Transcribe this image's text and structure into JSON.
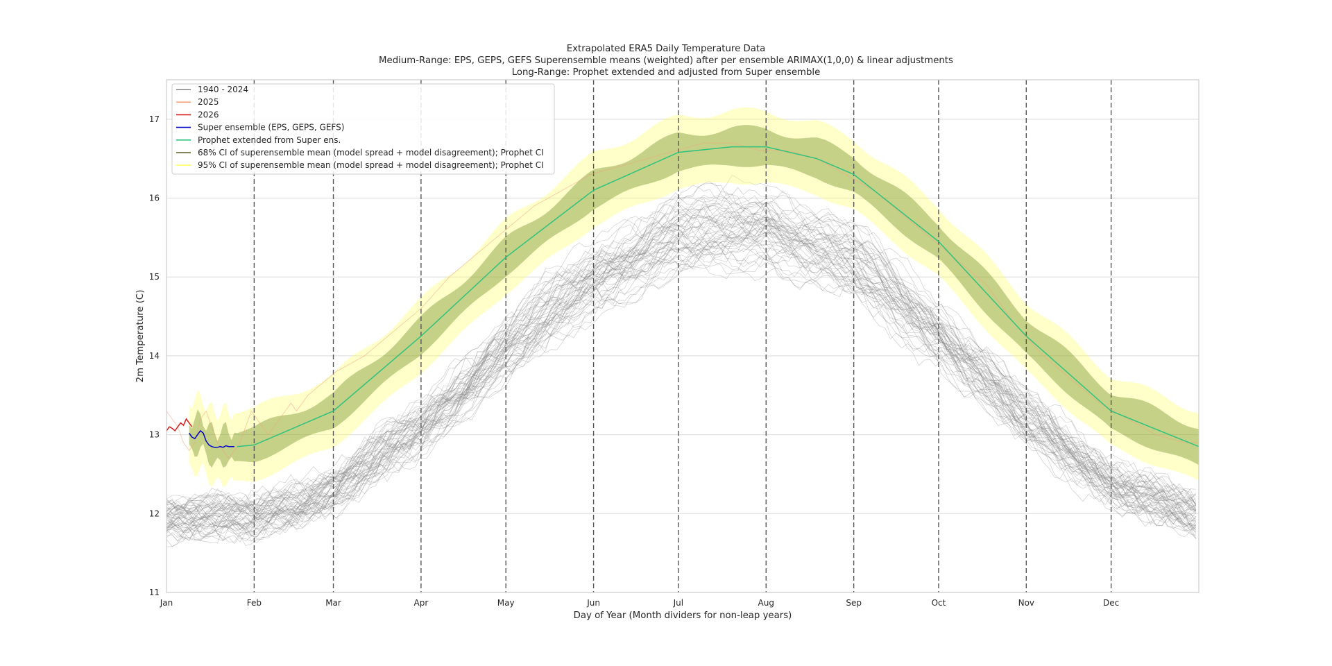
{
  "chart_data": {
    "type": "line",
    "title": [
      "Extrapolated ERA5 Daily Temperature Data",
      "Medium-Range: EPS, GEPS, GEFS Superensemble means (weighted) after per ensemble ARIMAX(1,0,0) & linear adjustments",
      "Long-Range: Prophet extended and adjusted from Super ensemble"
    ],
    "xlabel": "Day of Year (Month dividers for non-leap years)",
    "ylabel": "2m Temperature (C)",
    "xlim": [
      0,
      365
    ],
    "ylim": [
      11,
      17.5
    ],
    "yticks": [
      11,
      12,
      13,
      14,
      15,
      16,
      17
    ],
    "month_ticks": [
      {
        "day": 0,
        "label": "Jan"
      },
      {
        "day": 31,
        "label": "Feb"
      },
      {
        "day": 59,
        "label": "Mar"
      },
      {
        "day": 90,
        "label": "Apr"
      },
      {
        "day": 120,
        "label": "May"
      },
      {
        "day": 151,
        "label": "Jun"
      },
      {
        "day": 181,
        "label": "Jul"
      },
      {
        "day": 212,
        "label": "Aug"
      },
      {
        "day": 243,
        "label": "Sep"
      },
      {
        "day": 273,
        "label": "Oct"
      },
      {
        "day": 304,
        "label": "Nov"
      },
      {
        "day": 334,
        "label": "Dec"
      }
    ],
    "month_dividers": [
      31,
      59,
      90,
      120,
      151,
      181,
      212,
      243,
      273,
      304,
      334
    ],
    "historical": {
      "years": "1940 - 2024",
      "climatology": [
        {
          "day": 0,
          "value": 11.95
        },
        {
          "day": 31,
          "value": 11.95
        },
        {
          "day": 59,
          "value": 12.3
        },
        {
          "day": 90,
          "value": 13.1
        },
        {
          "day": 120,
          "value": 14.1
        },
        {
          "day": 151,
          "value": 15.0
        },
        {
          "day": 181,
          "value": 15.55
        },
        {
          "day": 212,
          "value": 15.65
        },
        {
          "day": 243,
          "value": 15.2
        },
        {
          "day": 273,
          "value": 14.3
        },
        {
          "day": 304,
          "value": 13.2
        },
        {
          "day": 334,
          "value": 12.4
        },
        {
          "day": 365,
          "value": 11.95
        }
      ],
      "spread": 0.4
    },
    "series": [
      {
        "name": "2025",
        "color": "#f4a582",
        "x": [
          0,
          2,
          4,
          6,
          8,
          10,
          12,
          14,
          16,
          18,
          20,
          22,
          24,
          26,
          28,
          30,
          32,
          34,
          36,
          38,
          40,
          42,
          44,
          46,
          48,
          50,
          60,
          70,
          80,
          90,
          100,
          110,
          120,
          130,
          140,
          150,
          160,
          170,
          180,
          190,
          200,
          210,
          220,
          230,
          240,
          250,
          260,
          270,
          280,
          290,
          300,
          310,
          320,
          330,
          340,
          350,
          360,
          365
        ],
        "y": [
          13.3,
          13.2,
          13.1,
          12.9,
          12.8,
          12.9,
          13.2,
          13.3,
          13.1,
          12.9,
          12.8,
          12.7,
          12.8,
          12.9,
          13.1,
          13.3,
          13.2,
          13.1,
          13.0,
          13.1,
          13.2,
          13.3,
          13.4,
          13.3,
          13.4,
          13.5,
          13.8,
          14.0,
          14.3,
          14.6,
          15.0,
          15.3,
          15.6,
          15.9,
          16.1,
          16.3,
          16.4,
          16.5,
          16.6,
          16.7,
          16.7,
          16.6,
          16.6,
          16.5,
          16.3,
          16.1,
          15.8,
          15.5,
          15.2,
          14.9,
          14.4,
          14.0,
          13.7,
          13.4,
          13.2,
          13.0,
          12.9,
          12.9
        ]
      },
      {
        "name": "2026",
        "color": "#d7191c",
        "x": [
          0,
          1,
          2,
          3,
          4,
          5,
          6,
          7,
          8,
          9
        ],
        "y": [
          13.05,
          13.1,
          13.08,
          13.05,
          13.1,
          13.15,
          13.12,
          13.2,
          13.15,
          13.1
        ]
      },
      {
        "name": "Super ensemble (EPS, GEPS, GEFS)",
        "color": "#0000c8",
        "x": [
          8,
          9,
          10,
          11,
          12,
          13,
          14,
          15,
          16,
          17,
          18,
          19,
          20,
          21,
          22,
          23,
          24
        ],
        "y": [
          13.02,
          12.97,
          12.95,
          13.0,
          13.05,
          13.02,
          12.92,
          12.87,
          12.85,
          12.84,
          12.84,
          12.85,
          12.84,
          12.86,
          12.85,
          12.85,
          12.85
        ]
      },
      {
        "name": "Prophet extended from Super ens.",
        "color": "#2ec27e",
        "x": [
          25,
          31,
          59,
          90,
          120,
          151,
          181,
          200,
          212,
          230,
          243,
          273,
          304,
          334,
          365
        ],
        "y": [
          12.85,
          12.87,
          13.3,
          14.25,
          15.25,
          16.1,
          16.58,
          16.65,
          16.65,
          16.5,
          16.3,
          15.45,
          14.25,
          13.3,
          12.85
        ]
      }
    ],
    "bands": [
      {
        "name": "68% CI of superensemble mean (model spread + model disagreement); Prophet CI",
        "color": "#6b8c21",
        "halfwidth_start": 0.2,
        "halfwidth_end": 0.25
      },
      {
        "name": "95% CI of superensemble mean (model spread + model disagreement); Prophet CI",
        "color": "#ffff66",
        "halfwidth_start": 0.45,
        "halfwidth_end": 0.45
      }
    ],
    "legend": [
      {
        "label": "1940 - 2024",
        "color": "#808080"
      },
      {
        "label": "2025",
        "color": "#f4a582"
      },
      {
        "label": "2026",
        "color": "#d7191c"
      },
      {
        "label": "Super ensemble (EPS, GEPS, GEFS)",
        "color": "#0000c8"
      },
      {
        "label": "Prophet extended from Super ens.",
        "color": "#2ec27e"
      },
      {
        "label": "68% CI of superensemble mean (model spread + model disagreement); Prophet CI",
        "color": "#5a5a28"
      },
      {
        "label": "95% CI of superensemble mean (model spread + model disagreement); Prophet CI",
        "color": "#ffff66"
      }
    ],
    "legend_position": "upper-left",
    "grid": true
  }
}
